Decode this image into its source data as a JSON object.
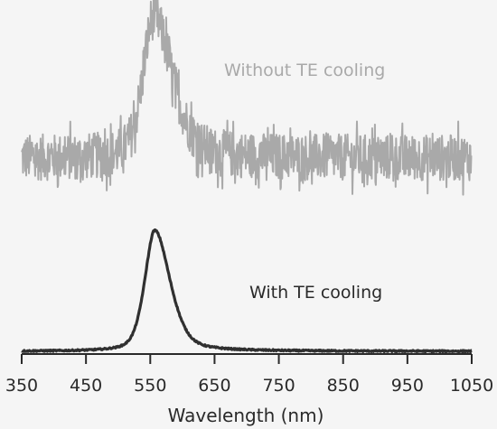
{
  "chart_data": {
    "type": "line",
    "title": "",
    "xlabel": "Wavelength (nm)",
    "ylabel": "",
    "xlim": [
      350,
      1050
    ],
    "x_ticks": [
      350,
      450,
      550,
      650,
      750,
      850,
      950,
      1050
    ],
    "x_tick_labels": [
      "350",
      "450",
      "550",
      "650",
      "750",
      "850",
      "950",
      "1050"
    ],
    "grid": false,
    "legend": "none",
    "series": [
      {
        "name": "Without TE cooling",
        "color": "#a9a9a9",
        "peak_nm": 555,
        "peak_height": 0.55,
        "width_left_nm": 18,
        "width_right_nm": 32,
        "noise_amplitude": 0.09,
        "baseline": 0.0
      },
      {
        "name": "With TE cooling",
        "color": "#303030",
        "peak_nm": 557,
        "peak_height": 1.0,
        "width_left_nm": 17,
        "width_right_nm": 26,
        "noise_amplitude": 0.006,
        "baseline": 0.0
      }
    ],
    "annotations": [
      "Without TE cooling",
      "With TE cooling"
    ]
  }
}
